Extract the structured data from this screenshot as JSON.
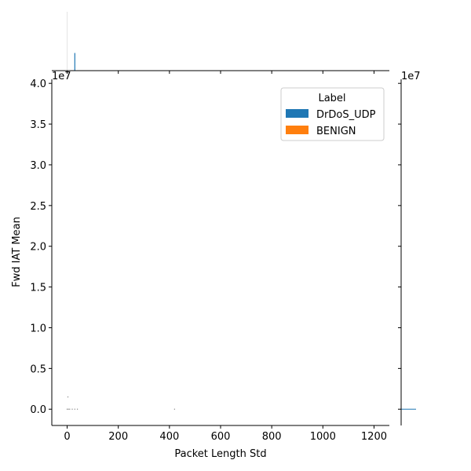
{
  "chart_data": {
    "type": "scatter",
    "title": "",
    "xlabel": "Packet Length Std",
    "ylabel": "Fwd IAT Mean",
    "xlim": [
      -60,
      1260
    ],
    "ylim": [
      -2000000,
      40500000
    ],
    "x_ticks": [
      0,
      200,
      400,
      600,
      800,
      1000,
      1200
    ],
    "x_tick_labels": [
      "0",
      "200",
      "400",
      "600",
      "800",
      "1000",
      "1200"
    ],
    "y_ticks": [
      0,
      5000000,
      10000000,
      15000000,
      20000000,
      25000000,
      30000000,
      35000000,
      40000000
    ],
    "y_tick_labels": [
      "0.0",
      "0.5",
      "1.0",
      "1.5",
      "2.0",
      "2.5",
      "3.0",
      "3.5",
      "4.0"
    ],
    "y_offset_label": "1e7",
    "marginal_y_offset_label": "1e7",
    "grid": false,
    "legend": {
      "title": "Label",
      "position": "top-right",
      "entries": [
        {
          "name": "DrDoS_UDP",
          "color": "#1f77b4"
        },
        {
          "name": "BENIGN",
          "color": "#ff7f0e"
        }
      ]
    },
    "series": [
      {
        "name": "DrDoS_UDP",
        "color": "#1f77b4",
        "x": [
          0,
          5,
          10,
          20,
          30,
          40,
          3,
          420
        ],
        "y": [
          0,
          0,
          0,
          0,
          0,
          0,
          1500000,
          0
        ]
      }
    ],
    "marginal_x": {
      "type": "histogram",
      "bars": [
        {
          "x": 0,
          "height": 1.0,
          "color": "#e6e6e6"
        },
        {
          "x": 30,
          "height": 0.3,
          "color": "#1f77b4"
        }
      ]
    },
    "marginal_y": {
      "type": "histogram",
      "bars": [
        {
          "y": 0,
          "width": 1.0,
          "color": "#1f77b4"
        }
      ]
    }
  }
}
